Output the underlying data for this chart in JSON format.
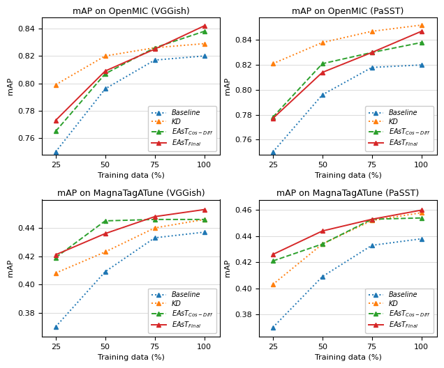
{
  "x": [
    25,
    50,
    75,
    100
  ],
  "plots": [
    {
      "title": "mAP on OpenMIC (VGGish)",
      "ylim": [
        0.748,
        0.848
      ],
      "yticks": [
        0.76,
        0.78,
        0.8,
        0.82,
        0.84
      ],
      "series": {
        "Baseline": [
          0.75,
          0.796,
          0.817,
          0.82
        ],
        "KD": [
          0.799,
          0.82,
          0.826,
          0.829
        ],
        "EAsT_CosDiff": [
          0.765,
          0.807,
          0.826,
          0.838
        ],
        "EAsT_Final": [
          0.773,
          0.809,
          0.825,
          0.842
        ]
      }
    },
    {
      "title": "mAP on OpenMIC (PaSST)",
      "ylim": [
        0.748,
        0.858
      ],
      "yticks": [
        0.76,
        0.78,
        0.8,
        0.82,
        0.84
      ],
      "series": {
        "Baseline": [
          0.75,
          0.796,
          0.818,
          0.82
        ],
        "KD": [
          0.821,
          0.838,
          0.847,
          0.852
        ],
        "EAsT_CosDiff": [
          0.778,
          0.821,
          0.83,
          0.838
        ],
        "EAsT_Final": [
          0.777,
          0.814,
          0.83,
          0.847
        ]
      }
    },
    {
      "title": "mAP on MagnaTagATune (VGGish)",
      "ylim": [
        0.363,
        0.46
      ],
      "yticks": [
        0.38,
        0.4,
        0.42,
        0.44
      ],
      "series": {
        "Baseline": [
          0.37,
          0.409,
          0.433,
          0.437
        ],
        "KD": [
          0.408,
          0.423,
          0.44,
          0.446
        ],
        "EAsT_CosDiff": [
          0.419,
          0.445,
          0.446,
          0.446
        ],
        "EAsT_Final": [
          0.421,
          0.436,
          0.448,
          0.453
        ]
      }
    },
    {
      "title": "mAP on MagnaTagATune (PaSST)",
      "ylim": [
        0.363,
        0.468
      ],
      "yticks": [
        0.38,
        0.4,
        0.42,
        0.44,
        0.46
      ],
      "series": {
        "Baseline": [
          0.37,
          0.409,
          0.433,
          0.438
        ],
        "KD": [
          0.403,
          0.434,
          0.452,
          0.458
        ],
        "EAsT_CosDiff": [
          0.421,
          0.434,
          0.453,
          0.454
        ],
        "EAsT_Final": [
          0.426,
          0.444,
          0.453,
          0.46
        ]
      }
    }
  ],
  "colors": {
    "Baseline": "#1f77b4",
    "KD": "#ff7f0e",
    "EAsT_CosDiff": "#2ca02c",
    "EAsT_Final": "#d62728"
  },
  "linestyles": {
    "Baseline": "dotted",
    "KD": "dotted",
    "EAsT_CosDiff": "dashed",
    "EAsT_Final": "solid"
  },
  "legend_labels": {
    "Baseline": "Baseline",
    "KD": "KD",
    "EAsT_CosDiff": "EAsT$_{Cos-Diff}$",
    "EAsT_Final": "EAsT$_{Final}$"
  },
  "series_order": [
    "Baseline",
    "KD",
    "EAsT_CosDiff",
    "EAsT_Final"
  ],
  "marker": "^",
  "markersize": 5,
  "linewidth": 1.4,
  "figure_width": 6.36,
  "figure_height": 5.28,
  "dpi": 100
}
